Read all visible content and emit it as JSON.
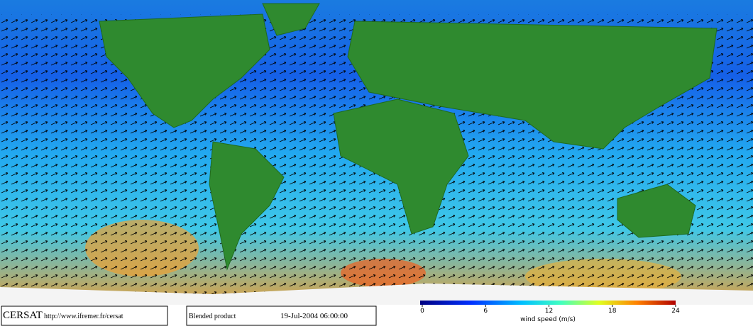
{
  "footer": {
    "logo": "CERSAT",
    "url": "http://www.ifremer.fr/cersat",
    "product": "Blended product",
    "date": "19-Jul-2004 06:00:00"
  },
  "colorbar": {
    "label": "wind speed (m/s)",
    "range": [
      0,
      24
    ],
    "ticks": [
      0,
      6,
      12,
      18,
      24
    ]
  }
}
